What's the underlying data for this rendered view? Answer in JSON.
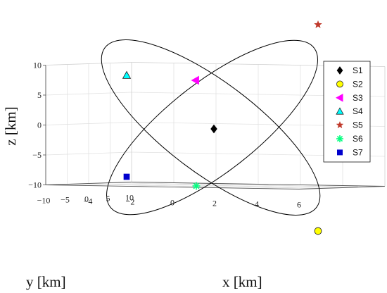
{
  "chart_data": {
    "type": "scatter",
    "projection": "3d",
    "title": "",
    "xlabel": "x [km]",
    "ylabel": "y [km]",
    "zlabel": "z [km]",
    "xlim": [
      -6,
      6
    ],
    "ylim": [
      -10,
      10
    ],
    "zlim": [
      -10,
      10
    ],
    "z_ticks": [
      "10",
      "5",
      "0",
      "−5",
      "−10"
    ],
    "x_ticks": [
      "−4",
      "−2",
      "0",
      "2",
      "4",
      "6"
    ],
    "y_ticks": [
      "10",
      "5",
      "0",
      "−5",
      "−10"
    ],
    "grid": true,
    "legend_position": "right",
    "series": [
      {
        "name": "S1",
        "marker": "diamond",
        "color": "#000000",
        "x": -2,
        "y": 0,
        "z": -0.3
      },
      {
        "name": "S2",
        "marker": "circle",
        "color": "#ffff00",
        "x": 4,
        "y": 3.3,
        "z": -8.7
      },
      {
        "name": "S3",
        "marker": "triangle-left",
        "color": "#ff00ff",
        "x": -2.7,
        "y": 4,
        "z": 4
      },
      {
        "name": "S4",
        "marker": "triangle-up",
        "color": "#00ffff",
        "x": -6.5,
        "y": 4,
        "z": 4.4
      },
      {
        "name": "S5",
        "marker": "star",
        "color": "#c0392b",
        "x": 4,
        "y": 3.3,
        "z": 8.6
      },
      {
        "name": "S6",
        "marker": "asterisk",
        "color": "#00ff7f",
        "x": -2.7,
        "y": 4,
        "z": -4.8
      },
      {
        "name": "S7",
        "marker": "square",
        "color": "#0000cd",
        "x": -6.5,
        "y": 4,
        "z": -4
      }
    ],
    "orbits": [
      {
        "name": "orbit-ascending",
        "color": "#000000"
      },
      {
        "name": "orbit-descending",
        "color": "#000000"
      }
    ]
  }
}
